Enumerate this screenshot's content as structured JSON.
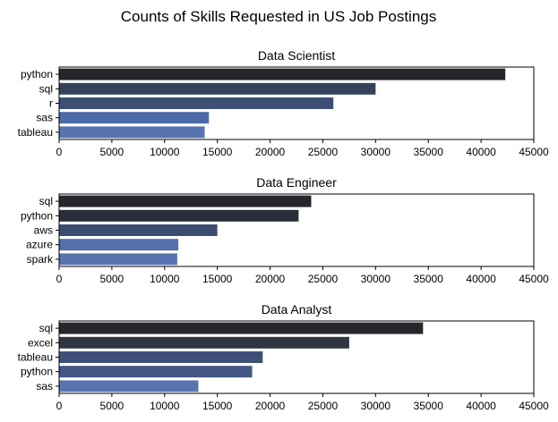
{
  "figure": {
    "suptitle": "Counts of Skills Requested in US Job Postings"
  },
  "chart_data": [
    {
      "type": "bar",
      "orientation": "horizontal",
      "title": "Data Scientist",
      "categories": [
        "python",
        "sql",
        "r",
        "sas",
        "tableau"
      ],
      "values": [
        42300,
        30000,
        26000,
        14200,
        13800
      ],
      "xlim": [
        0,
        45000
      ],
      "xticks": [
        "0",
        "5000",
        "10000",
        "15000",
        "20000",
        "25000",
        "30000",
        "35000",
        "40000",
        "45000"
      ],
      "xlabel": "",
      "ylabel": "",
      "grid": false,
      "colors": [
        "#25272c",
        "#36425a",
        "#3d4f75",
        "#4d6aa6",
        "#5874b0"
      ]
    },
    {
      "type": "bar",
      "orientation": "horizontal",
      "title": "Data Engineer",
      "categories": [
        "sql",
        "python",
        "aws",
        "azure",
        "spark"
      ],
      "values": [
        23900,
        22700,
        15000,
        11300,
        11200
      ],
      "xlim": [
        0,
        45000
      ],
      "xticks": [
        "0",
        "5000",
        "10000",
        "15000",
        "20000",
        "25000",
        "30000",
        "35000",
        "40000",
        "45000"
      ],
      "xlabel": "",
      "ylabel": "",
      "grid": false,
      "colors": [
        "#25272c",
        "#2a2e38",
        "#3c4c70",
        "#5470aa",
        "#5874b0"
      ]
    },
    {
      "type": "bar",
      "orientation": "horizontal",
      "title": "Data Analyst",
      "categories": [
        "sql",
        "excel",
        "tableau",
        "python",
        "sas"
      ],
      "values": [
        34500,
        27500,
        19300,
        18300,
        13200
      ],
      "xlim": [
        0,
        45000
      ],
      "xticks": [
        "0",
        "5000",
        "10000",
        "15000",
        "20000",
        "25000",
        "30000",
        "35000",
        "40000",
        "45000"
      ],
      "xlabel": "",
      "ylabel": "",
      "grid": false,
      "colors": [
        "#25272c",
        "#30363f",
        "#3f5078",
        "#435786",
        "#5874b0"
      ]
    }
  ]
}
